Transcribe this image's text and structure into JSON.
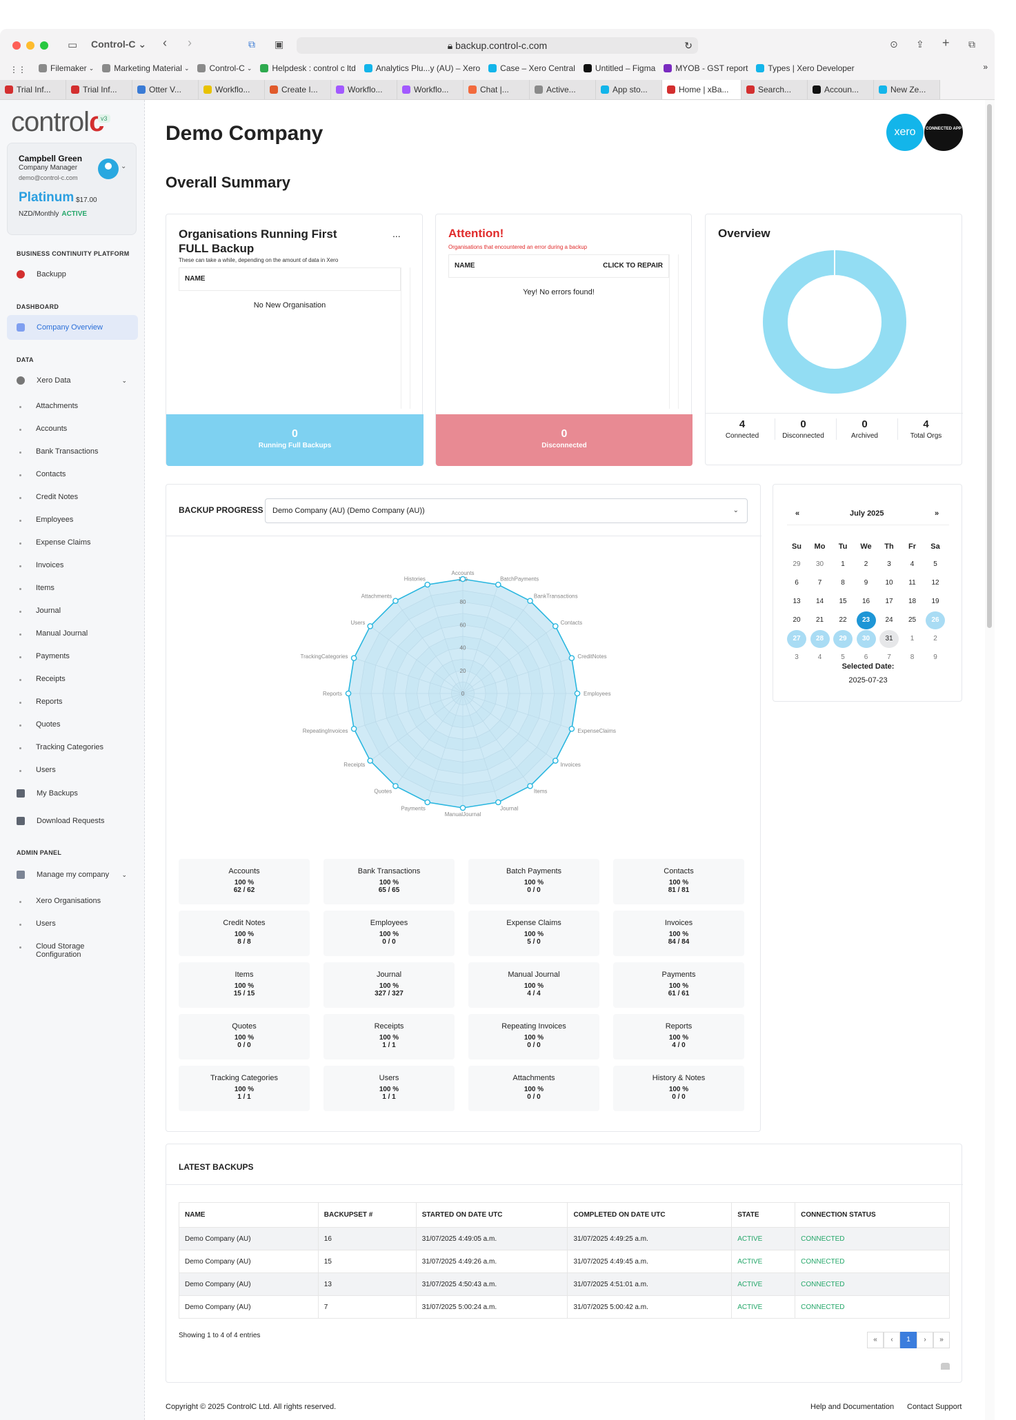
{
  "browser": {
    "site_menu": "Control-C",
    "url": "backup.control-c.com",
    "bookmarks": [
      {
        "label": "Filemaker",
        "chev": true
      },
      {
        "label": "Marketing Material",
        "chev": true
      },
      {
        "label": "Control-C",
        "chev": true
      },
      {
        "label": "Helpdesk : control c ltd"
      },
      {
        "label": "Analytics Plu...y (AU) – Xero"
      },
      {
        "label": "Case – Xero Central"
      },
      {
        "label": "Untitled – Figma"
      },
      {
        "label": "MYOB - GST report"
      },
      {
        "label": "Types | Xero Developer"
      }
    ],
    "tabs": [
      "Trial Inf...",
      "Trial Inf...",
      "Otter V...",
      "Workflo...",
      "Create I...",
      "Workflo...",
      "Workflo...",
      "Chat |...",
      "Active...",
      "App sto...",
      "Home | xBa...",
      "Search...",
      "Accoun...",
      "New Ze..."
    ],
    "active_tab": 10
  },
  "sidebar": {
    "logo_a": "control",
    "logo_b": "c",
    "version": "v3",
    "user": {
      "name": "Campbell Green",
      "role": "Company Manager",
      "email": "demo@control-c.com",
      "plan": "Platinum",
      "price": "$17.00",
      "billing": "NZD/Monthly",
      "status": "ACTIVE"
    },
    "sections": {
      "bcp": "BUSINESS CONTINUITY PLATFORM",
      "dashboard": "DASHBOARD",
      "data": "DATA",
      "admin": "ADMIN PANEL"
    },
    "backupp": "Backupp",
    "company_overview": "Company Overview",
    "xero_data": "Xero Data",
    "data_items": [
      "Attachments",
      "Accounts",
      "Bank Transactions",
      "Contacts",
      "Credit Notes",
      "Employees",
      "Expense Claims",
      "Invoices",
      "Items",
      "Journal",
      "Manual Journal",
      "Payments",
      "Receipts",
      "Reports",
      "Quotes",
      "Tracking Categories",
      "Users"
    ],
    "my_backups": "My Backups",
    "download_requests": "Download Requests",
    "manage_company": "Manage my company",
    "admin_items": [
      "Xero Organisations",
      "Users",
      "Cloud Storage",
      "Configuration"
    ]
  },
  "main": {
    "company": "Demo Company",
    "summary_title": "Overall Summary",
    "xero_logo": "xero",
    "connected_app": "CONNECTED APP",
    "first_backup": {
      "title_line1": "Organisations Running First",
      "title_line2": "FULL Backup",
      "subtitle": "These can take a while, depending on the amount of data in Xero",
      "col_name": "NAME",
      "empty": "No New Organisation",
      "stat_value": "0",
      "stat_label": "Running Full Backups",
      "menu": "..."
    },
    "attention": {
      "title": "Attention!",
      "subtitle": "Organisations that encountered an error during a backup",
      "col_name": "NAME",
      "col_repair": "CLICK TO REPAIR",
      "empty": "Yey! No errors found!",
      "stat_value": "0",
      "stat_label": "Disconnected"
    },
    "overview": {
      "title": "Overview",
      "stats": [
        {
          "value": "4",
          "label": "Connected"
        },
        {
          "value": "0",
          "label": "Disconnected"
        },
        {
          "value": "0",
          "label": "Archived"
        },
        {
          "value": "4",
          "label": "Total Orgs"
        }
      ],
      "donut_color": "#93ddf3"
    },
    "backup_progress": {
      "label": "BACKUP PROGRESS",
      "selected": "Demo Company (AU) (Demo Company (AU))"
    },
    "calendar": {
      "month": "July 2025",
      "prev": "«",
      "next": "»",
      "weekdays": [
        "Su",
        "Mo",
        "Tu",
        "We",
        "Th",
        "Fr",
        "Sa"
      ],
      "days": [
        "29",
        "30",
        "1",
        "2",
        "3",
        "4",
        "5",
        "6",
        "7",
        "8",
        "9",
        "10",
        "11",
        "12",
        "13",
        "14",
        "15",
        "16",
        "17",
        "18",
        "19",
        "20",
        "21",
        "22",
        "23",
        "24",
        "25",
        "26",
        "27",
        "28",
        "29",
        "30",
        "31",
        "1",
        "2",
        "3",
        "4",
        "5",
        "6",
        "7",
        "8",
        "9"
      ],
      "selected_label": "Selected Date:",
      "selected_date": "2025-07-23"
    },
    "progress_stats": [
      {
        "name": "Accounts",
        "pct": "100 %",
        "count": "62 / 62"
      },
      {
        "name": "Bank Transactions",
        "pct": "100 %",
        "count": "65 / 65"
      },
      {
        "name": "Batch Payments",
        "pct": "100 %",
        "count": "0 / 0"
      },
      {
        "name": "Contacts",
        "pct": "100 %",
        "count": "81 / 81"
      },
      {
        "name": "Credit Notes",
        "pct": "100 %",
        "count": "8 / 8"
      },
      {
        "name": "Employees",
        "pct": "100 %",
        "count": "0 / 0"
      },
      {
        "name": "Expense Claims",
        "pct": "100 %",
        "count": "5 / 0"
      },
      {
        "name": "Invoices",
        "pct": "100 %",
        "count": "84 / 84"
      },
      {
        "name": "Items",
        "pct": "100 %",
        "count": "15 / 15"
      },
      {
        "name": "Journal",
        "pct": "100 %",
        "count": "327 / 327"
      },
      {
        "name": "Manual Journal",
        "pct": "100 %",
        "count": "4 / 4"
      },
      {
        "name": "Payments",
        "pct": "100 %",
        "count": "61 / 61"
      },
      {
        "name": "Quotes",
        "pct": "100 %",
        "count": "0 / 0"
      },
      {
        "name": "Receipts",
        "pct": "100 %",
        "count": "1 / 1"
      },
      {
        "name": "Repeating Invoices",
        "pct": "100 %",
        "count": "0 / 0"
      },
      {
        "name": "Reports",
        "pct": "100 %",
        "count": "4 / 0"
      },
      {
        "name": "Tracking Categories",
        "pct": "100 %",
        "count": "1 / 1"
      },
      {
        "name": "Users",
        "pct": "100 %",
        "count": "1 / 1"
      },
      {
        "name": "Attachments",
        "pct": "100 %",
        "count": "0 / 0"
      },
      {
        "name": "History & Notes",
        "pct": "100 %",
        "count": "0 / 0"
      }
    ],
    "latest_backups": {
      "title": "LATEST BACKUPS",
      "columns": [
        "NAME",
        "BACKUPSET #",
        "STARTED ON DATE UTC",
        "COMPLETED ON DATE UTC",
        "STATE",
        "CONNECTION STATUS"
      ],
      "rows": [
        [
          "Demo Company (AU)",
          "16",
          "31/07/2025 4:49:05 a.m.",
          "31/07/2025 4:49:25 a.m.",
          "ACTIVE",
          "CONNECTED"
        ],
        [
          "Demo Company (AU)",
          "15",
          "31/07/2025 4:49:26 a.m.",
          "31/07/2025 4:49:45 a.m.",
          "ACTIVE",
          "CONNECTED"
        ],
        [
          "Demo Company (AU)",
          "13",
          "31/07/2025 4:50:43 a.m.",
          "31/07/2025 4:51:01 a.m.",
          "ACTIVE",
          "CONNECTED"
        ],
        [
          "Demo Company (AU)",
          "7",
          "31/07/2025 5:00:24 a.m.",
          "31/07/2025 5:00:42 a.m.",
          "ACTIVE",
          "CONNECTED"
        ]
      ],
      "showing": "Showing 1 to 4 of 4 entries",
      "pager": [
        "«",
        "‹",
        "1",
        "›",
        "»"
      ]
    },
    "footer": {
      "copyright": "Copyright © 2025 ControlC Ltd. All rights reserved.",
      "help": "Help and Documentation",
      "support": "Contact Support"
    }
  },
  "chart_data": {
    "type": "radar",
    "categories": [
      "Accounts",
      "BatchPayments",
      "BankTransactions",
      "Contacts",
      "CreditNotes",
      "Employees",
      "ExpenseClaims",
      "Invoices",
      "Items",
      "Journal",
      "ManualJournal",
      "Payments",
      "Quotes",
      "Receipts",
      "RepeatingInvoices",
      "Reports",
      "TrackingCategories",
      "Users",
      "Attachments",
      "Histories"
    ],
    "values": [
      100,
      100,
      100,
      100,
      100,
      100,
      100,
      100,
      100,
      100,
      100,
      100,
      100,
      100,
      100,
      100,
      100,
      100,
      100,
      100
    ],
    "radial_ticks": [
      "0",
      "20",
      "40",
      "60",
      "80",
      "100"
    ],
    "rlim": [
      0,
      100
    ],
    "color": "#29b6df"
  }
}
